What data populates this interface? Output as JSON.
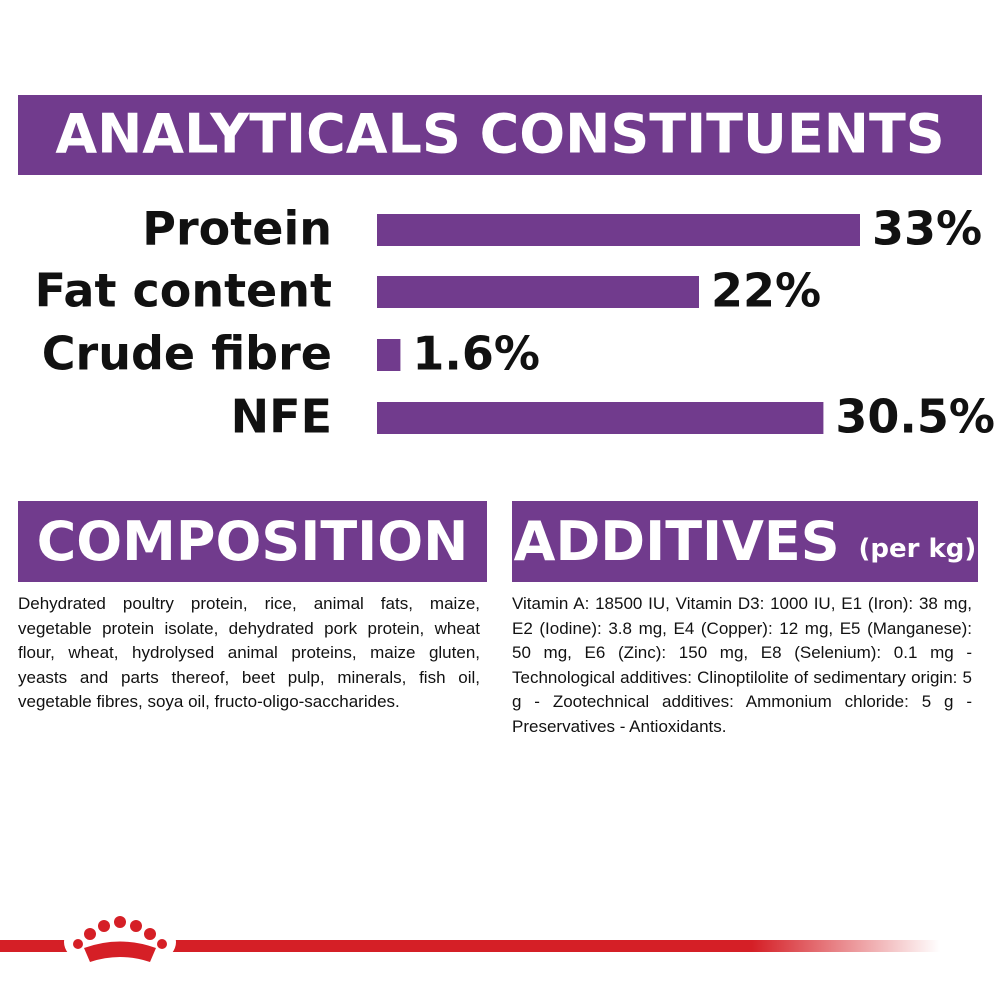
{
  "chart_data": {
    "type": "bar",
    "orientation": "horizontal",
    "title": "ANALYTICALS CONSTITUENTS",
    "categories": [
      "Protein",
      "Fat content",
      "Crude fibre",
      "NFE"
    ],
    "values": [
      33,
      22,
      1.6,
      30.5
    ],
    "value_labels": [
      "33%",
      "22%",
      "1.6%",
      "30.5%"
    ],
    "color": "#713b8d"
  },
  "composition": {
    "title": "COMPOSITION",
    "text": "Dehydrated poultry protein, rice, animal fats, maize, vegetable protein isolate, dehydrated pork protein, wheat flour, wheat, hydrolysed animal proteins, maize gluten, yeasts and parts thereof, beet pulp, minerals, fish oil, vegetable fibres, soya oil, fructo-oligo-saccharides."
  },
  "additives": {
    "title": "ADDITIVES",
    "subtitle": "(per kg)",
    "text": "Vitamin A: 18500 IU, Vitamin D3: 1000 IU, E1 (Iron): 38 mg, E2 (Iodine): 3.8 mg, E4 (Copper): 12 mg, E5 (Manganese): 50 mg, E6 (Zinc): 150 mg, E8 (Selenium): 0.1 mg -Technological additives: Clinoptilolite of sedimentary origin: 5 g - Zootechnical additives: Ammonium chloride: 5 g - Preservatives - Antioxidants."
  }
}
